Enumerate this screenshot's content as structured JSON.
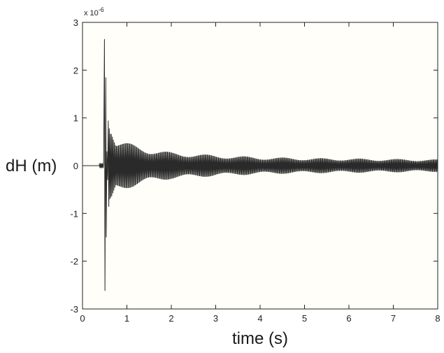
{
  "chart_data": {
    "type": "line",
    "title": "",
    "xlabel": "time (s)",
    "ylabel": "dH (m)",
    "xlim": [
      0,
      8
    ],
    "ylim": [
      -3,
      3
    ],
    "x_ticks": [
      0,
      1,
      2,
      3,
      4,
      5,
      6,
      7,
      8
    ],
    "y_ticks": [
      -3,
      -2,
      -1,
      0,
      1,
      2,
      3
    ],
    "y_multiplier_base": "x 10",
    "y_multiplier_exponent": "-6",
    "grid": false,
    "legend": "none",
    "colors": {
      "line": "#2a2a2a",
      "plot_background": "#fffef8",
      "axes": "#222222"
    },
    "series": [
      {
        "description_points": [
          {
            "x": 0.0,
            "y": 0.0
          },
          {
            "x": 0.38,
            "y": 0.0
          },
          {
            "x": 0.42,
            "y": 0.05
          },
          {
            "x": 0.45,
            "y": -0.05
          },
          {
            "x": 0.5,
            "y": 2.65
          },
          {
            "x": 0.52,
            "y": -2.6
          },
          {
            "x": 0.54,
            "y": 1.85
          },
          {
            "x": 0.56,
            "y": -1.5
          },
          {
            "x": 0.62,
            "y": 0.95
          },
          {
            "x": 0.65,
            "y": -0.95
          },
          {
            "x": 0.75,
            "y": 0.55
          },
          {
            "x": 1.0,
            "y": 0.48
          },
          {
            "x": 1.5,
            "y": 0.35
          },
          {
            "x": 2.0,
            "y": 0.28
          },
          {
            "x": 3.0,
            "y": 0.22
          },
          {
            "x": 4.0,
            "y": 0.18
          },
          {
            "x": 5.0,
            "y": 0.16
          },
          {
            "x": 6.0,
            "y": 0.15
          },
          {
            "x": 7.0,
            "y": 0.14
          },
          {
            "x": 8.0,
            "y": 0.13
          }
        ]
      }
    ]
  }
}
